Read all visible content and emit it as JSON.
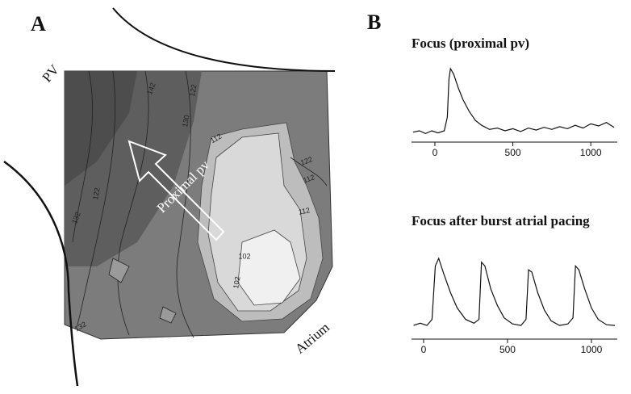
{
  "panel_a": {
    "label": "A",
    "vessel_label": "PV",
    "arrow_label": "Proximal pv",
    "region_label": "Atrium",
    "contour_labels": [
      "132",
      "142",
      "122",
      "130",
      "112",
      "122",
      "112",
      "102",
      "112",
      "102",
      "122",
      "132"
    ]
  },
  "panel_b": {
    "label": "B"
  },
  "chart_data": [
    {
      "type": "line",
      "title": "Focus (proximal pv)",
      "color": "#111",
      "x": [
        -140,
        -100,
        -60,
        -20,
        20,
        60,
        80,
        90,
        100,
        120,
        150,
        180,
        220,
        260,
        300,
        350,
        400,
        450,
        500,
        550,
        600,
        650,
        700,
        750,
        800,
        850,
        900,
        950,
        1000,
        1050,
        1100,
        1150
      ],
      "values": [
        0.08,
        0.1,
        0.06,
        0.1,
        0.07,
        0.1,
        0.3,
        0.85,
        1.0,
        0.92,
        0.72,
        0.55,
        0.38,
        0.25,
        0.18,
        0.12,
        0.14,
        0.1,
        0.13,
        0.09,
        0.14,
        0.11,
        0.15,
        0.12,
        0.16,
        0.13,
        0.18,
        0.14,
        0.2,
        0.17,
        0.22,
        0.15
      ],
      "xlim": [
        -150,
        1170
      ],
      "xticks": [
        0,
        500,
        1000
      ]
    },
    {
      "type": "line",
      "title": "Focus after burst atrial pacing",
      "color": "#111",
      "x": [
        -60,
        -20,
        20,
        50,
        70,
        90,
        120,
        160,
        200,
        250,
        300,
        330,
        345,
        365,
        400,
        440,
        480,
        530,
        580,
        610,
        625,
        645,
        680,
        720,
        760,
        810,
        860,
        890,
        905,
        925,
        960,
        1000,
        1040,
        1090,
        1140
      ],
      "values": [
        0.12,
        0.15,
        0.12,
        0.2,
        0.9,
        1.0,
        0.8,
        0.55,
        0.35,
        0.2,
        0.15,
        0.2,
        0.95,
        0.9,
        0.6,
        0.38,
        0.22,
        0.14,
        0.12,
        0.2,
        0.85,
        0.82,
        0.55,
        0.32,
        0.18,
        0.12,
        0.14,
        0.22,
        0.9,
        0.85,
        0.6,
        0.35,
        0.2,
        0.13,
        0.12
      ],
      "xlim": [
        -72,
        1154
      ],
      "xticks": [
        0,
        500,
        1000
      ]
    }
  ]
}
